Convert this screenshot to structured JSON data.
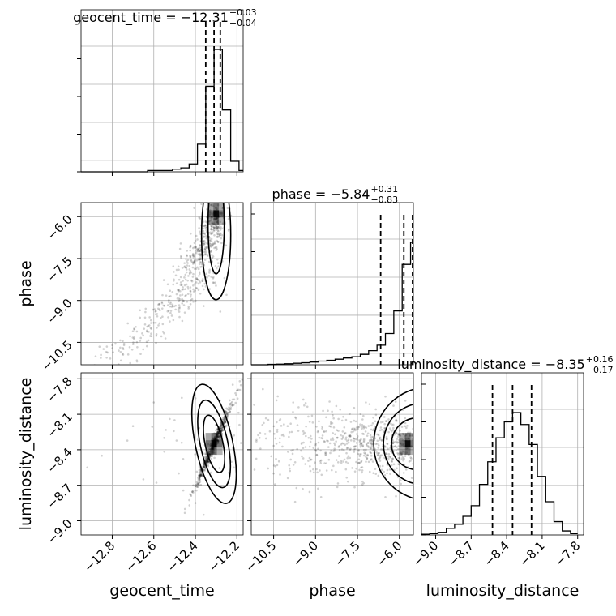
{
  "figure": {
    "type": "corner-plot",
    "params": [
      "geocent_time",
      "phase",
      "luminosity_distance"
    ]
  },
  "titles": [
    {
      "name": "geocent_time",
      "median": "-12.31",
      "plus": "+0.03",
      "minus": "-0.04"
    },
    {
      "name": "phase",
      "median": "-5.84",
      "plus": "+0.31",
      "minus": "-0.83"
    },
    {
      "name": "luminosity_distance",
      "median": "-8.35",
      "plus": "+0.16",
      "minus": "-0.17"
    }
  ],
  "axes": {
    "xlabels": [
      "geocent_time",
      "phase",
      "luminosity_distance"
    ],
    "ylabels": [
      "phase",
      "luminosity_distance"
    ],
    "xticks": [
      {
        "values": [
          -12.8,
          -12.6,
          -12.4,
          -12.2
        ],
        "labels": [
          "−12.8",
          "−12.6",
          "−12.4",
          "−12.2"
        ]
      },
      {
        "values": [
          -10.5,
          -9.0,
          -7.5,
          -6.0
        ],
        "labels": [
          "−10.5",
          "−9.0",
          "−7.5",
          "−6.0"
        ]
      },
      {
        "values": [
          -9.0,
          -8.7,
          -8.4,
          -8.1,
          -7.8
        ],
        "labels": [
          "−9.0",
          "−8.7",
          "−8.4",
          "−8.1",
          "−7.8"
        ]
      }
    ],
    "yticks": [
      {
        "values": [
          -6.0,
          -7.5,
          -9.0,
          -10.5
        ],
        "labels": [
          "−6.0",
          "−7.5",
          "−9.0",
          "−10.5"
        ]
      },
      {
        "values": [
          -7.8,
          -8.1,
          -8.4,
          -8.7,
          -9.0
        ],
        "labels": [
          "−7.8",
          "−8.1",
          "−8.4",
          "−8.7",
          "−9.0"
        ]
      }
    ]
  },
  "chart_data": {
    "type": "corner",
    "ranges": {
      "geocent_time": [
        -12.95,
        -12.17
      ],
      "phase": [
        -11.3,
        -5.5
      ],
      "luminosity_distance": [
        -9.12,
        -7.75
      ]
    },
    "grid": true,
    "histograms": [
      {
        "param": "geocent_time",
        "edges": [
          -12.95,
          -12.91,
          -12.87,
          -12.83,
          -12.79,
          -12.75,
          -12.71,
          -12.67,
          -12.63,
          -12.59,
          -12.55,
          -12.51,
          -12.47,
          -12.43,
          -12.39,
          -12.35,
          -12.31,
          -12.27,
          -12.23,
          -12.19,
          -12.17
        ],
        "counts": [
          0,
          0,
          0,
          0,
          0,
          0,
          0,
          0,
          0.01,
          0.01,
          0.01,
          0.02,
          0.03,
          0.06,
          0.21,
          0.65,
          0.93,
          0.47,
          0.08,
          0.01
        ],
        "quantiles": [
          -12.35,
          -12.31,
          -12.28
        ]
      },
      {
        "param": "phase",
        "edges": [
          -11.3,
          -11.0,
          -10.7,
          -10.4,
          -10.1,
          -9.8,
          -9.5,
          -9.2,
          -8.9,
          -8.6,
          -8.3,
          -8.0,
          -7.7,
          -7.4,
          -7.1,
          -6.8,
          -6.5,
          -6.2,
          -5.9,
          -5.6,
          -5.5
        ],
        "counts": [
          0,
          0,
          0.003,
          0.005,
          0.008,
          0.012,
          0.016,
          0.022,
          0.03,
          0.036,
          0.045,
          0.055,
          0.065,
          0.085,
          0.115,
          0.16,
          0.255,
          0.44,
          0.82,
          1.0
        ],
        "quantiles": [
          -6.67,
          -5.84,
          -5.53
        ]
      },
      {
        "param": "luminosity_distance",
        "edges": [
          -9.12,
          -9.05,
          -8.98,
          -8.91,
          -8.84,
          -8.77,
          -8.7,
          -8.63,
          -8.56,
          -8.49,
          -8.42,
          -8.35,
          -8.28,
          -8.21,
          -8.14,
          -8.07,
          -8.0,
          -7.93,
          -7.86,
          -7.8
        ],
        "counts": [
          0.005,
          0.01,
          0.02,
          0.05,
          0.08,
          0.14,
          0.22,
          0.38,
          0.55,
          0.73,
          0.85,
          0.92,
          0.83,
          0.68,
          0.44,
          0.25,
          0.1,
          0.03,
          0.01
        ],
        "quantiles": [
          -8.52,
          -8.35,
          -8.19
        ]
      }
    ],
    "joint": [
      {
        "x": "geocent_time",
        "y": "phase",
        "peak": [
          -12.3,
          -5.9
        ],
        "scatter": [
          [
            -12.33,
            -6.0
          ],
          [
            -12.31,
            -6.4
          ],
          [
            -12.29,
            -6.9
          ],
          [
            -12.34,
            -7.4
          ],
          [
            -12.38,
            -7.7
          ],
          [
            -12.42,
            -8.0
          ],
          [
            -12.46,
            -8.3
          ],
          [
            -12.51,
            -8.7
          ],
          [
            -12.56,
            -9.1
          ],
          [
            -12.62,
            -9.6
          ],
          [
            -12.7,
            -10.1
          ],
          [
            -12.8,
            -10.6
          ],
          [
            -12.88,
            -11.0
          ],
          [
            -12.27,
            -7.6
          ],
          [
            -12.26,
            -8.2
          ],
          [
            -12.25,
            -8.8
          ],
          [
            -12.36,
            -9.2
          ],
          [
            -12.41,
            -8.6
          ],
          [
            -12.24,
            -6.5
          ],
          [
            -12.3,
            -7.2
          ],
          [
            -12.48,
            -7.9
          ],
          [
            -12.35,
            -8.5
          ],
          [
            -12.28,
            -9.4
          ],
          [
            -12.6,
            -9.8
          ]
        ]
      },
      {
        "x": "geocent_time",
        "y": "luminosity_distance",
        "peak": [
          -12.31,
          -8.35
        ],
        "scatter": [
          [
            -12.55,
            -8.3
          ],
          [
            -12.6,
            -8.0
          ],
          [
            -12.48,
            -8.6
          ],
          [
            -12.45,
            -8.9
          ],
          [
            -12.22,
            -7.85
          ],
          [
            -12.2,
            -7.9
          ],
          [
            -12.7,
            -8.2
          ],
          [
            -12.85,
            -8.45
          ],
          [
            -12.92,
            -8.55
          ],
          [
            -12.4,
            -8.85
          ],
          [
            -12.36,
            -8.95
          ],
          [
            -12.25,
            -8.05
          ],
          [
            -12.5,
            -8.15
          ],
          [
            -12.65,
            -8.65
          ]
        ]
      },
      {
        "x": "phase",
        "y": "luminosity_distance",
        "peak": [
          -5.7,
          -8.35
        ],
        "scatter": [
          [
            -9.5,
            -8.35
          ],
          [
            -9.0,
            -8.4
          ],
          [
            -8.5,
            -8.2
          ],
          [
            -8.0,
            -8.5
          ],
          [
            -7.5,
            -8.3
          ],
          [
            -7.0,
            -8.45
          ],
          [
            -10.0,
            -8.2
          ],
          [
            -10.5,
            -8.6
          ],
          [
            -11.0,
            -8.3
          ],
          [
            -6.5,
            -7.95
          ],
          [
            -6.5,
            -8.8
          ],
          [
            -8.8,
            -8.8
          ],
          [
            -9.8,
            -8.0
          ],
          [
            -7.2,
            -8.0
          ]
        ]
      }
    ]
  }
}
